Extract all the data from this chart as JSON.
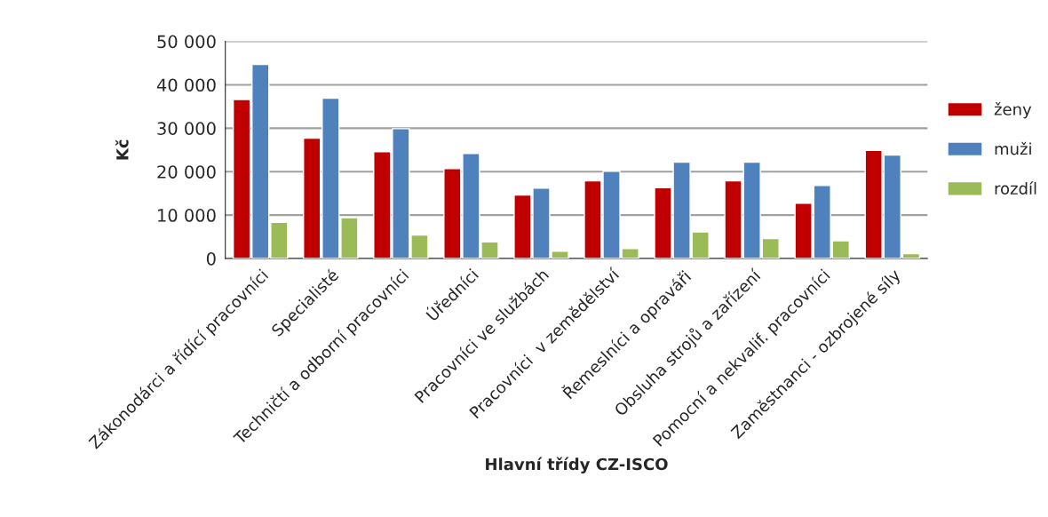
{
  "chart_data": {
    "type": "bar",
    "xlabel": "Hlavní třídy CZ-ISCO",
    "ylabel": "Kč",
    "categories": [
      "Zákonodárci a řídící pracovníci",
      "Specialisté",
      "Techničtí a odborní pracovníci",
      "Úředníci",
      "Pracovníci ve službách",
      "Pracovníci  v zemědělství",
      "Řemeslníci a opraváři",
      "Obsluha strojů a zařízení",
      "Pomocní a nekvalif. pracovníci",
      "Zaměstnanci - ozbrojené síly"
    ],
    "series": [
      {
        "name": "ženy",
        "color": "#c00000",
        "values": [
          36600,
          27700,
          24600,
          20700,
          14600,
          17900,
          16300,
          17900,
          12700,
          24900
        ]
      },
      {
        "name": "muži",
        "color": "#4f81bd",
        "values": [
          44700,
          36900,
          29900,
          24200,
          16200,
          20100,
          22200,
          22200,
          16800,
          23800
        ]
      },
      {
        "name": "rozdíl",
        "color": "#9bbb59",
        "values": [
          8300,
          9400,
          5400,
          3800,
          1700,
          2300,
          6100,
          4600,
          4100,
          1100
        ]
      }
    ],
    "ylim": [
      0,
      50000
    ],
    "yticks": [
      {
        "value": 0,
        "label": "0"
      },
      {
        "value": 10000,
        "label": "10 000"
      },
      {
        "value": 20000,
        "label": "20 000"
      },
      {
        "value": 30000,
        "label": "30 000"
      },
      {
        "value": 40000,
        "label": "40 000"
      },
      {
        "value": 50000,
        "label": "50 000"
      }
    ],
    "grid": "y",
    "legend": "right"
  }
}
